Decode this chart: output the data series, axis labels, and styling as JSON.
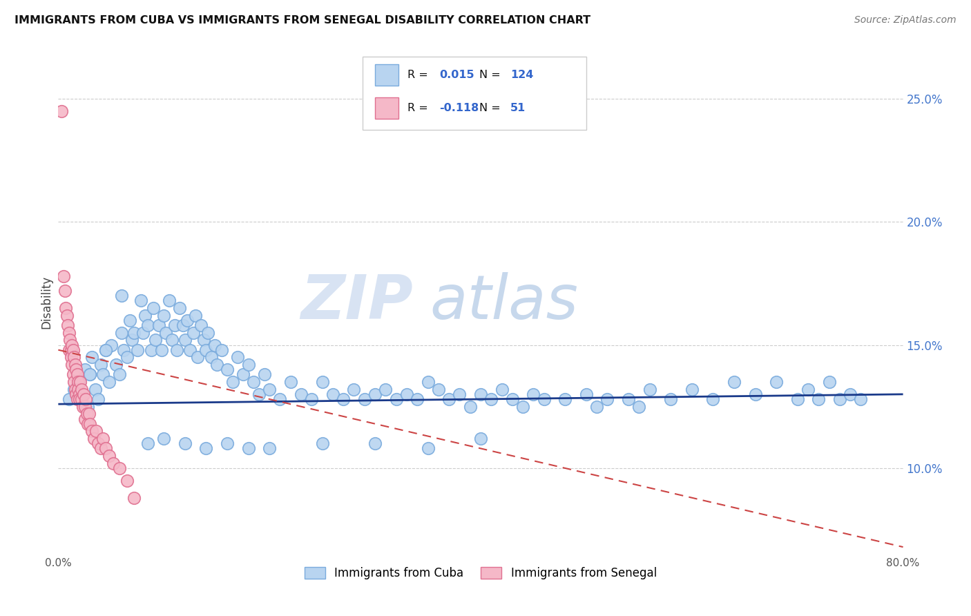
{
  "title": "IMMIGRANTS FROM CUBA VS IMMIGRANTS FROM SENEGAL DISABILITY CORRELATION CHART",
  "source": "Source: ZipAtlas.com",
  "ylabel": "Disability",
  "xlim": [
    0.0,
    0.8
  ],
  "ylim": [
    0.065,
    0.27
  ],
  "yticks": [
    0.1,
    0.15,
    0.2,
    0.25
  ],
  "ytick_labels": [
    "10.0%",
    "15.0%",
    "20.0%",
    "25.0%"
  ],
  "xticks": [
    0.0,
    0.1,
    0.2,
    0.3,
    0.4,
    0.5,
    0.6,
    0.7,
    0.8
  ],
  "xtick_labels": [
    "0.0%",
    "",
    "",
    "",
    "",
    "",
    "",
    "",
    "80.0%"
  ],
  "cuba_color": "#b8d4f0",
  "cuba_edge_color": "#7aabdd",
  "senegal_color": "#f5b8c8",
  "senegal_edge_color": "#e07090",
  "cuba_trend_color": "#1a3a8a",
  "senegal_trend_color": "#cc4444",
  "R_cuba": 0.015,
  "N_cuba": 124,
  "R_senegal": -0.118,
  "N_senegal": 51,
  "watermark_zip": "ZIP",
  "watermark_atlas": "atlas",
  "legend_label_cuba": "Immigrants from Cuba",
  "legend_label_senegal": "Immigrants from Senegal",
  "cuba_trend_y_start": 0.126,
  "cuba_trend_y_end": 0.13,
  "senegal_trend_y_start": 0.148,
  "senegal_trend_y_end": 0.068,
  "cuba_x": [
    0.01,
    0.015,
    0.02,
    0.022,
    0.025,
    0.028,
    0.03,
    0.032,
    0.035,
    0.038,
    0.04,
    0.042,
    0.045,
    0.048,
    0.05,
    0.055,
    0.058,
    0.06,
    0.062,
    0.065,
    0.068,
    0.07,
    0.072,
    0.075,
    0.078,
    0.08,
    0.082,
    0.085,
    0.088,
    0.09,
    0.092,
    0.095,
    0.098,
    0.1,
    0.102,
    0.105,
    0.108,
    0.11,
    0.112,
    0.115,
    0.118,
    0.12,
    0.122,
    0.125,
    0.128,
    0.13,
    0.132,
    0.135,
    0.138,
    0.14,
    0.142,
    0.145,
    0.148,
    0.15,
    0.155,
    0.16,
    0.165,
    0.17,
    0.175,
    0.18,
    0.185,
    0.19,
    0.195,
    0.2,
    0.21,
    0.22,
    0.23,
    0.24,
    0.25,
    0.26,
    0.27,
    0.28,
    0.29,
    0.3,
    0.31,
    0.32,
    0.33,
    0.34,
    0.35,
    0.36,
    0.37,
    0.38,
    0.39,
    0.4,
    0.41,
    0.42,
    0.43,
    0.44,
    0.45,
    0.46,
    0.48,
    0.5,
    0.51,
    0.52,
    0.54,
    0.55,
    0.56,
    0.58,
    0.6,
    0.62,
    0.64,
    0.66,
    0.68,
    0.7,
    0.71,
    0.72,
    0.73,
    0.74,
    0.75,
    0.76,
    0.03,
    0.045,
    0.06,
    0.085,
    0.1,
    0.12,
    0.14,
    0.16,
    0.18,
    0.2,
    0.25,
    0.3,
    0.35,
    0.4
  ],
  "cuba_y": [
    0.128,
    0.132,
    0.135,
    0.13,
    0.14,
    0.125,
    0.138,
    0.145,
    0.132,
    0.128,
    0.142,
    0.138,
    0.148,
    0.135,
    0.15,
    0.142,
    0.138,
    0.155,
    0.148,
    0.145,
    0.16,
    0.152,
    0.155,
    0.148,
    0.168,
    0.155,
    0.162,
    0.158,
    0.148,
    0.165,
    0.152,
    0.158,
    0.148,
    0.162,
    0.155,
    0.168,
    0.152,
    0.158,
    0.148,
    0.165,
    0.158,
    0.152,
    0.16,
    0.148,
    0.155,
    0.162,
    0.145,
    0.158,
    0.152,
    0.148,
    0.155,
    0.145,
    0.15,
    0.142,
    0.148,
    0.14,
    0.135,
    0.145,
    0.138,
    0.142,
    0.135,
    0.13,
    0.138,
    0.132,
    0.128,
    0.135,
    0.13,
    0.128,
    0.135,
    0.13,
    0.128,
    0.132,
    0.128,
    0.13,
    0.132,
    0.128,
    0.13,
    0.128,
    0.135,
    0.132,
    0.128,
    0.13,
    0.125,
    0.13,
    0.128,
    0.132,
    0.128,
    0.125,
    0.13,
    0.128,
    0.128,
    0.13,
    0.125,
    0.128,
    0.128,
    0.125,
    0.132,
    0.128,
    0.132,
    0.128,
    0.135,
    0.13,
    0.135,
    0.128,
    0.132,
    0.128,
    0.135,
    0.128,
    0.13,
    0.128,
    0.138,
    0.148,
    0.17,
    0.11,
    0.112,
    0.11,
    0.108,
    0.11,
    0.108,
    0.108,
    0.11,
    0.11,
    0.108,
    0.112
  ],
  "senegal_x": [
    0.003,
    0.005,
    0.006,
    0.007,
    0.008,
    0.009,
    0.01,
    0.01,
    0.011,
    0.012,
    0.012,
    0.013,
    0.013,
    0.014,
    0.014,
    0.015,
    0.015,
    0.016,
    0.016,
    0.017,
    0.017,
    0.018,
    0.018,
    0.019,
    0.019,
    0.02,
    0.02,
    0.021,
    0.022,
    0.022,
    0.023,
    0.024,
    0.025,
    0.025,
    0.026,
    0.027,
    0.028,
    0.029,
    0.03,
    0.032,
    0.034,
    0.036,
    0.038,
    0.04,
    0.042,
    0.045,
    0.048,
    0.052,
    0.058,
    0.065,
    0.072
  ],
  "senegal_y": [
    0.245,
    0.178,
    0.172,
    0.165,
    0.162,
    0.158,
    0.155,
    0.148,
    0.152,
    0.148,
    0.145,
    0.15,
    0.142,
    0.148,
    0.138,
    0.145,
    0.135,
    0.142,
    0.132,
    0.14,
    0.13,
    0.138,
    0.128,
    0.135,
    0.132,
    0.13,
    0.128,
    0.135,
    0.132,
    0.128,
    0.125,
    0.13,
    0.125,
    0.12,
    0.128,
    0.122,
    0.118,
    0.122,
    0.118,
    0.115,
    0.112,
    0.115,
    0.11,
    0.108,
    0.112,
    0.108,
    0.105,
    0.102,
    0.1,
    0.095,
    0.088
  ]
}
